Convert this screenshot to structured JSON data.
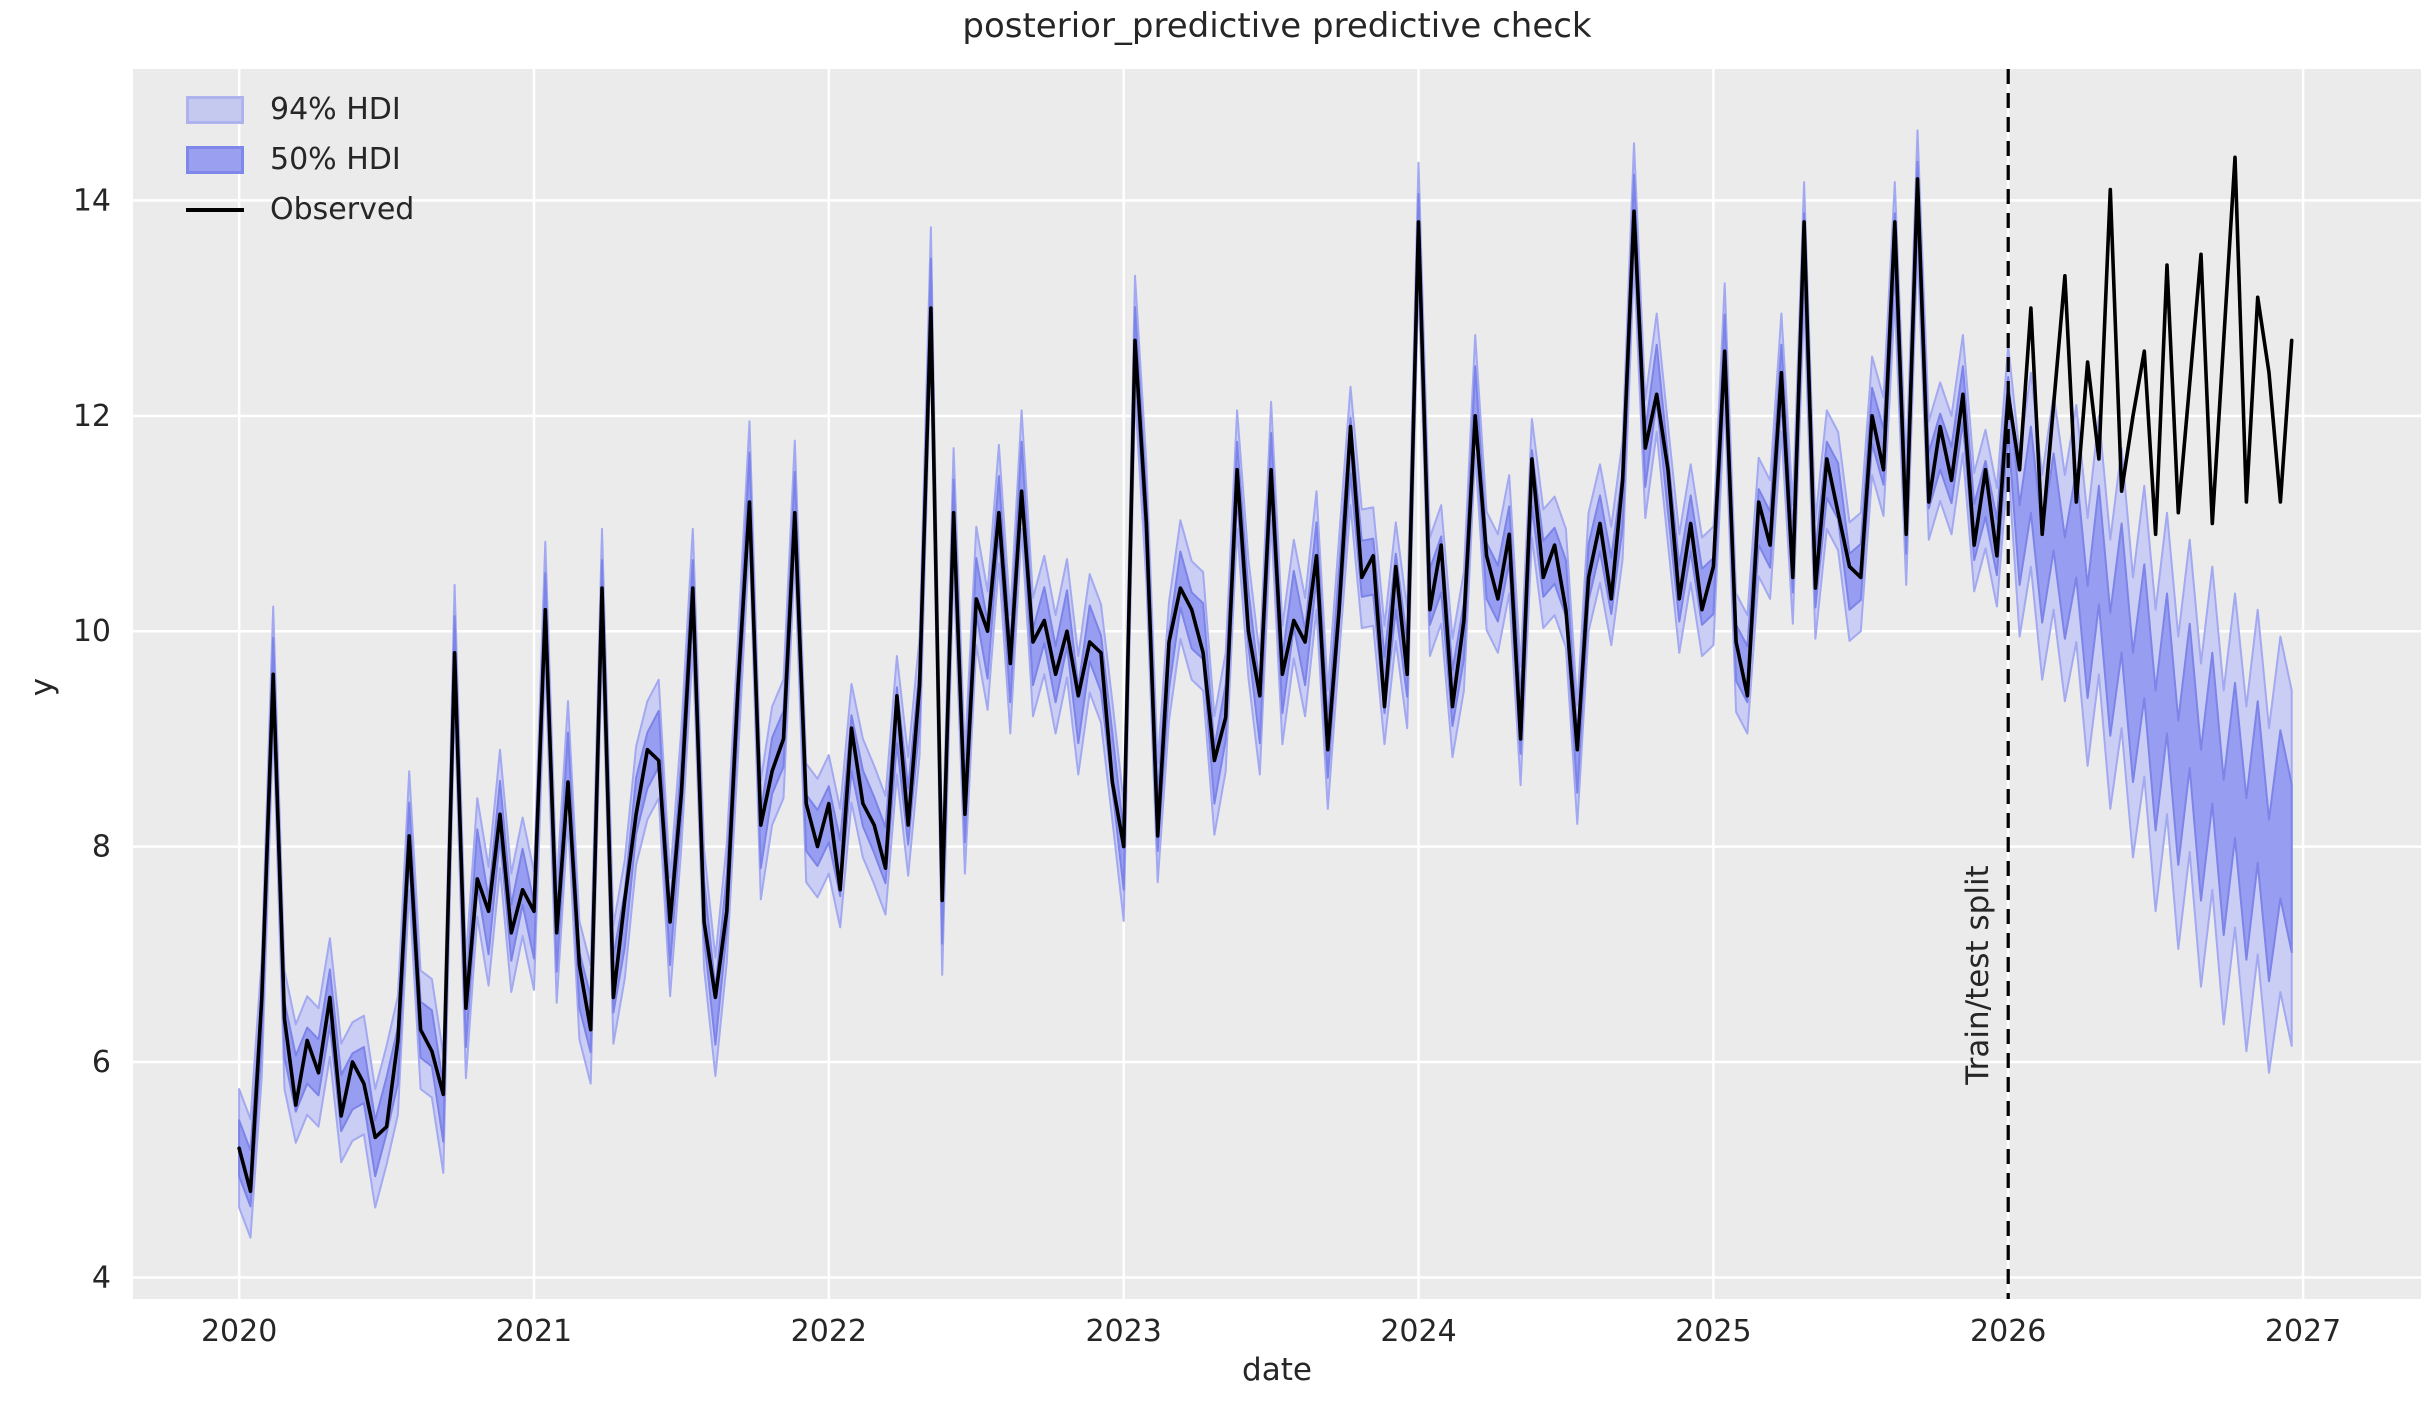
{
  "title": "posterior_predictive predictive check",
  "axes": {
    "xlabel": "date",
    "ylabel": "y",
    "xticks": [
      2020,
      2021,
      2022,
      2023,
      2024,
      2025,
      2026,
      2027
    ],
    "yticks": [
      4,
      6,
      8,
      10,
      12,
      14
    ],
    "xlim": [
      2019.64,
      2027.4
    ],
    "ylim": [
      3.8,
      15.22
    ],
    "grid": "white horizontal and vertical lines on light gray panel"
  },
  "legend": {
    "position": "upper-left",
    "items": [
      {
        "label": "94% HDI",
        "type": "band",
        "fill": "#c6c9ef",
        "edge": "#aeb3ee"
      },
      {
        "label": "50% HDI",
        "type": "band",
        "fill": "#9aa0ef",
        "edge": "#7f87ea"
      },
      {
        "label": "Observed",
        "type": "line",
        "color": "#000000"
      }
    ]
  },
  "annotation": {
    "split_label": "Train/test split",
    "split_x": 2026.0,
    "split_line_style": "black dashed vertical"
  },
  "colors": {
    "figure_bg": "#ffffff",
    "panel_bg": "#ebebeb",
    "grid": "#ffffff",
    "text": "#262626",
    "observed_line": "#000000",
    "hdi94_fill": "#cacdf4",
    "hdi94_edge": "#a3a9f0",
    "hdi50_fill": "#979df0",
    "hdi50_edge": "#7d84e8",
    "split_line": "#000000"
  },
  "chart_data": {
    "type": "line",
    "title": "posterior_predictive predictive check",
    "xlabel": "date",
    "ylabel": "y",
    "x_unit": "decimal years, biweekly sampling",
    "x_start": 2020.0,
    "x_step": 0.0384615,
    "observed": [
      5.2,
      4.8,
      6.6,
      9.6,
      6.4,
      5.6,
      6.2,
      5.9,
      6.6,
      5.5,
      6.0,
      5.8,
      5.3,
      5.4,
      6.2,
      8.1,
      6.3,
      6.1,
      5.7,
      9.8,
      6.5,
      7.7,
      7.4,
      8.3,
      7.2,
      7.6,
      7.4,
      10.2,
      7.2,
      8.6,
      6.9,
      6.3,
      10.4,
      6.6,
      7.5,
      8.3,
      8.9,
      8.8,
      7.3,
      8.5,
      10.4,
      7.3,
      6.6,
      7.4,
      9.5,
      11.2,
      8.2,
      8.7,
      9.0,
      11.1,
      8.4,
      8.0,
      8.4,
      7.6,
      9.1,
      8.4,
      8.2,
      7.8,
      9.4,
      8.2,
      9.5,
      13.0,
      7.5,
      11.1,
      8.3,
      10.3,
      10.0,
      11.1,
      9.7,
      11.3,
      9.9,
      10.1,
      9.6,
      10.0,
      9.4,
      9.9,
      9.8,
      8.6,
      8.0,
      12.7,
      11.0,
      8.1,
      9.9,
      10.4,
      10.2,
      9.8,
      8.8,
      9.2,
      11.5,
      10.0,
      9.4,
      11.5,
      9.6,
      10.1,
      9.9,
      10.7,
      8.9,
      10.2,
      11.9,
      10.5,
      10.7,
      9.3,
      10.6,
      9.6,
      13.8,
      10.2,
      10.8,
      9.3,
      10.1,
      12.0,
      10.7,
      10.3,
      10.9,
      9.0,
      11.6,
      10.5,
      10.8,
      10.2,
      8.9,
      10.5,
      11.0,
      10.3,
      11.4,
      13.9,
      11.7,
      12.2,
      11.5,
      10.3,
      11.0,
      10.2,
      10.6,
      12.6,
      9.9,
      9.4,
      11.2,
      10.8,
      12.4,
      10.5,
      13.8,
      10.4,
      11.6,
      11.1,
      10.6,
      10.5,
      12.0,
      11.5,
      13.8,
      10.9,
      14.2,
      11.2,
      11.9,
      11.4,
      12.2,
      10.8,
      11.5,
      10.7,
      12.2,
      11.5,
      13.0,
      10.9,
      12.1,
      13.3,
      11.2,
      12.5,
      11.6,
      14.1,
      11.3,
      12.0,
      12.6,
      10.9,
      13.4,
      11.1,
      12.3,
      13.5,
      11.0,
      12.7,
      14.4,
      11.2,
      13.1,
      12.4,
      11.2,
      12.7
    ],
    "hdi_train": {
      "description": "in-sample posterior predictive bands hug the observed series",
      "hdi94_halfwidth": 0.55,
      "hdi50_halfwidth": 0.26,
      "center_offset_cycle": [
        0,
        0.12,
        -0.18,
        0.08,
        -0.1,
        0.2,
        -0.14,
        0.05
      ]
    },
    "forecast": {
      "description": "out-of-sample predictive bands after the train/test split",
      "x_start": 2026.0,
      "x_step": 0.0384615,
      "center": [
        11.4,
        10.8,
        11.5,
        10.5,
        11.2,
        10.4,
        11.0,
        9.9,
        10.8,
        9.6,
        10.4,
        9.2,
        10.0,
        8.8,
        9.7,
        8.5,
        9.4,
        8.2,
        9.1,
        7.9,
        8.8,
        7.7,
        8.6,
        7.5,
        8.3,
        7.8
      ],
      "hw94": [
        0.8,
        0.85,
        0.9,
        0.95,
        1.0,
        1.05,
        1.1,
        1.15,
        1.2,
        1.25,
        1.3,
        1.3,
        1.35,
        1.4,
        1.4,
        1.45,
        1.45,
        1.5,
        1.5,
        1.55,
        1.55,
        1.6,
        1.6,
        1.6,
        1.65,
        1.65
      ],
      "hw50": [
        0.35,
        0.37,
        0.4,
        0.42,
        0.45,
        0.47,
        0.5,
        0.52,
        0.55,
        0.57,
        0.6,
        0.6,
        0.62,
        0.65,
        0.65,
        0.67,
        0.67,
        0.7,
        0.7,
        0.72,
        0.72,
        0.75,
        0.75,
        0.75,
        0.78,
        0.78
      ]
    },
    "split_x": 2026.0,
    "series_legend": [
      "94% HDI",
      "50% HDI",
      "Observed"
    ]
  }
}
